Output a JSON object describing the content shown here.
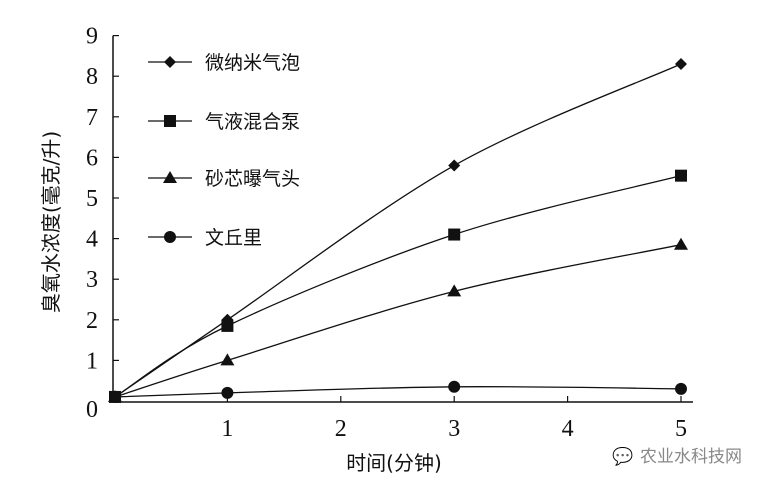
{
  "chart_data": {
    "type": "line",
    "title": "",
    "xlabel": "时间(分钟)",
    "ylabel": "臭氧水浓度(毫克/升)",
    "xlim": [
      0,
      5
    ],
    "ylim": [
      0,
      9
    ],
    "xticks": [
      1,
      2,
      3,
      4,
      5
    ],
    "yticks": [
      0,
      1,
      2,
      3,
      4,
      5,
      6,
      7,
      8,
      9
    ],
    "grid": false,
    "legend_placement": "top-left",
    "x": [
      0,
      1,
      3,
      5
    ],
    "series": [
      {
        "name": "微纳米气泡",
        "marker": "diamond",
        "values": [
          0.1,
          2.0,
          5.8,
          8.3
        ]
      },
      {
        "name": "气液混合泵",
        "marker": "square",
        "values": [
          0.1,
          1.85,
          4.1,
          5.55
        ]
      },
      {
        "name": "砂芯曝气头",
        "marker": "triangle",
        "values": [
          0.1,
          1.0,
          2.7,
          3.85
        ]
      },
      {
        "name": "文丘里",
        "marker": "circle",
        "values": [
          0.1,
          0.2,
          0.35,
          0.3
        ]
      }
    ],
    "color": "#111111"
  },
  "watermark": "农业水科技网"
}
